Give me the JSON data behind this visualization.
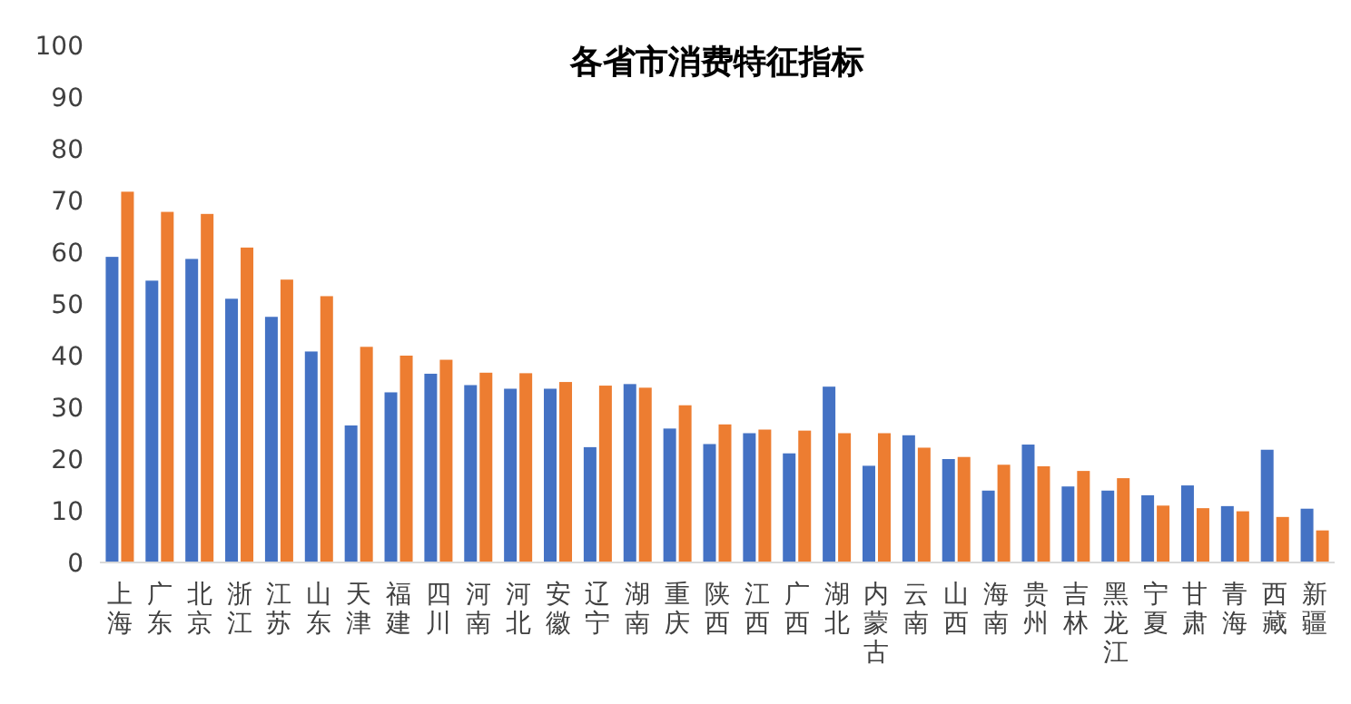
{
  "chart_data": {
    "type": "bar",
    "title": "各省市消费特征指标",
    "categories": [
      "上海",
      "广东",
      "北京",
      "浙江",
      "江苏",
      "山东",
      "天津",
      "福建",
      "四川",
      "河南",
      "河北",
      "安徽",
      "辽宁",
      "湖南",
      "重庆",
      "陕西",
      "江西",
      "广西",
      "湖北",
      "内蒙古",
      "云南",
      "山西",
      "海南",
      "贵州",
      "吉林",
      "黑龙江",
      "宁夏",
      "甘肃",
      "青海",
      "西藏",
      "新疆"
    ],
    "series": [
      {
        "color": "#4472c4",
        "values": [
          59.1,
          54.5,
          58.7,
          51.0,
          47.5,
          40.8,
          26.5,
          32.9,
          36.5,
          34.3,
          33.6,
          33.6,
          22.3,
          34.5,
          25.9,
          22.9,
          25.0,
          21.1,
          34.0,
          18.7,
          24.6,
          20.0,
          13.9,
          22.8,
          14.7,
          13.9,
          13.0,
          14.9,
          10.9,
          21.8,
          10.4
        ]
      },
      {
        "color": "#ed7d31",
        "values": [
          71.7,
          67.8,
          67.4,
          60.9,
          54.7,
          51.5,
          41.7,
          40.0,
          39.2,
          36.7,
          36.6,
          34.9,
          34.2,
          33.8,
          30.4,
          26.7,
          25.7,
          25.5,
          25.0,
          25.0,
          22.2,
          20.4,
          18.9,
          18.6,
          17.7,
          16.3,
          11.0,
          10.5,
          9.9,
          8.8,
          6.2
        ]
      }
    ],
    "ylim": [
      0,
      100
    ],
    "yticks": [
      0,
      10,
      20,
      30,
      40,
      50,
      60,
      70,
      80,
      90,
      100
    ]
  }
}
